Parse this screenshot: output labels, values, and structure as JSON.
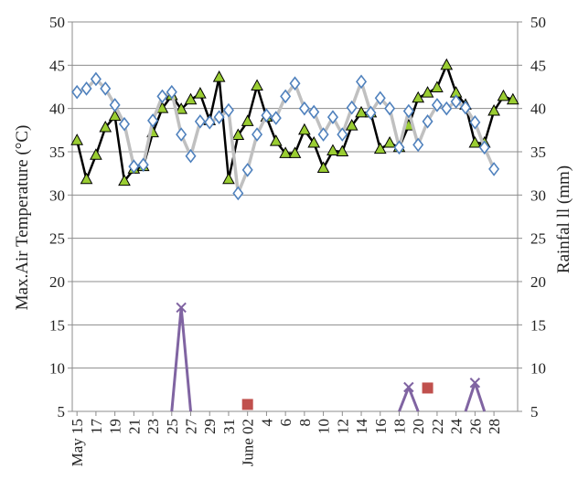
{
  "chart_data": {
    "type": "line",
    "title": "",
    "ylabel_left": "Max.Air Temperature (°C)",
    "ylabel_right": "Rainfal ll (mm)",
    "ylim_left": [
      5,
      50
    ],
    "ylim_right": [
      5,
      50
    ],
    "y_ticks_left": [
      5,
      10,
      15,
      20,
      25,
      30,
      35,
      40,
      45,
      50
    ],
    "y_ticks_right": [
      5,
      10,
      15,
      20,
      25,
      30,
      35,
      40,
      45,
      50
    ],
    "grid": true,
    "x_tick_labels": [
      "May 15",
      "17",
      "19",
      "21",
      "23",
      "25",
      "27",
      "29",
      "31",
      "June 02",
      "4",
      "6",
      "8",
      "10",
      "12",
      "14",
      "16",
      "18",
      "20",
      "22",
      "24",
      "26",
      "28"
    ],
    "x": [
      "May 15",
      "May 16",
      "May 17",
      "May 18",
      "May 19",
      "May 20",
      "May 21",
      "May 22",
      "May 23",
      "May 24",
      "May 25",
      "May 26",
      "May 27",
      "May 28",
      "May 29",
      "May 30",
      "May 31",
      "Jun 01",
      "Jun 02",
      "Jun 03",
      "Jun 04",
      "Jun 05",
      "Jun 06",
      "Jun 07",
      "Jun 08",
      "Jun 09",
      "Jun 10",
      "Jun 11",
      "Jun 12",
      "Jun 13",
      "Jun 14",
      "Jun 15",
      "Jun 16",
      "Jun 17",
      "Jun 18",
      "Jun 19",
      "Jun 20",
      "Jun 21",
      "Jun 22",
      "Jun 23",
      "Jun 24",
      "Jun 25",
      "Jun 26",
      "Jun 27",
      "Jun 28",
      "Jun 29",
      "Jun 30"
    ],
    "series": [
      {
        "style": "black-line-green-triangle",
        "color": "#000000",
        "marker_color": "#9acd32",
        "values": [
          36.3,
          31.8,
          34.6,
          37.8,
          39.1,
          31.6,
          33.0,
          33.3,
          37.2,
          40.0,
          41.5,
          39.9,
          41.0,
          41.7,
          38.6,
          43.6,
          31.8,
          36.9,
          38.5,
          42.6,
          39.0,
          36.2,
          34.8,
          34.8,
          37.5,
          36.0,
          33.1,
          35.1,
          35.0,
          38.0,
          39.5,
          39.5,
          35.3,
          36.0,
          35.5,
          38.0,
          41.2,
          41.8,
          42.4,
          45.0,
          41.8,
          40.4,
          36.0,
          36.0,
          39.7,
          41.4,
          41.0
        ]
      },
      {
        "style": "gray-line-blue-diamond",
        "color": "#c0c0c0",
        "marker_color": "#4f81bd",
        "values": [
          41.9,
          42.3,
          43.4,
          42.3,
          40.4,
          38.2,
          33.3,
          33.5,
          38.6,
          41.4,
          41.9,
          37.0,
          34.5,
          38.5,
          38.4,
          39.0,
          39.8,
          30.2,
          32.9,
          37.0,
          39.2,
          38.9,
          41.4,
          42.9,
          40.0,
          39.6,
          37.0,
          39.0,
          37.0,
          40.1,
          43.1,
          39.5,
          41.2,
          40.0,
          35.5,
          39.7,
          35.8,
          38.5,
          40.4,
          40.0,
          40.8,
          40.1,
          38.4,
          35.5,
          33.0,
          null,
          null
        ]
      },
      {
        "style": "purple-line-x-marker",
        "color": "#8064a2",
        "segments": [
          {
            "x": [
              "May 25",
              "May 26",
              "May 27"
            ],
            "values": [
              5,
              17,
              5
            ],
            "markers": [
              false,
              true,
              false
            ]
          },
          {
            "x": [
              "Jun 18",
              "Jun 19",
              "Jun 20"
            ],
            "values": [
              5,
              7.8,
              5
            ],
            "markers": [
              false,
              true,
              false
            ]
          },
          {
            "x": [
              "Jun 25",
              "Jun 26",
              "Jun 27"
            ],
            "values": [
              5,
              8.3,
              5
            ],
            "markers": [
              false,
              true,
              false
            ]
          }
        ]
      },
      {
        "style": "red-square-marker",
        "color": "#c0504d",
        "points": [
          {
            "x": "Jun 02",
            "value": 5.8
          },
          {
            "x": "Jun 21",
            "value": 7.7
          }
        ]
      }
    ]
  }
}
